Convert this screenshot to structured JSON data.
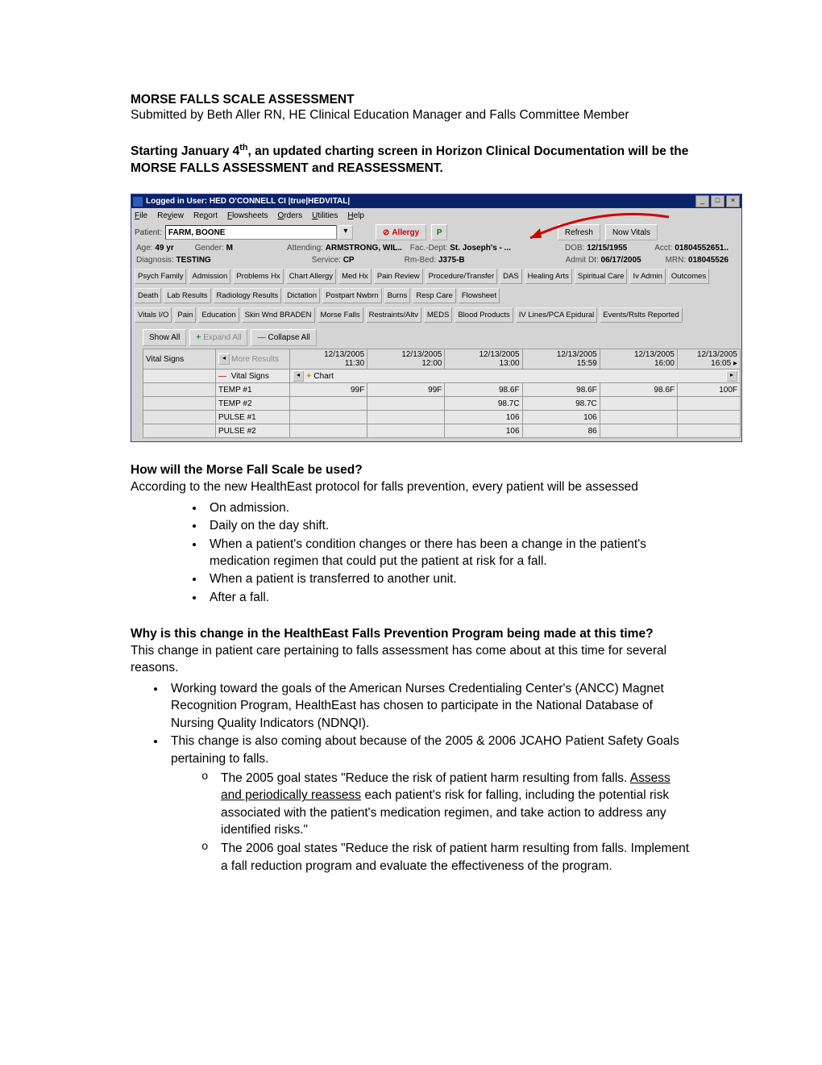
{
  "doc": {
    "title": "MORSE FALLS SCALE ASSESSMENT",
    "intro": "Submitted by Beth Aller RN, HE Clinical Education Manager and Falls Committee Member",
    "announce_a": "Starting January 4",
    "announce_sup": "th",
    "announce_b": ", an updated charting screen in Horizon Clinical Documentation will be  the MORSE FALLS ASSESSMENT and REASSESSMENT.",
    "q1": "How will the Morse Fall Scale be used?",
    "q1_body": "According to the new HealthEast protocol for falls prevention, every patient will be assessed",
    "q1_items": [
      "On admission.",
      "Daily on the day shift.",
      "When a patient's condition changes or there has been a change in the patient's medication regimen that could put the patient at risk for a fall.",
      "When a patient is transferred to another unit.",
      "After a fall."
    ],
    "q2": "Why is this change in the HealthEast Falls Prevention Program being made at this time?",
    "q2_body": "This change in patient care pertaining to falls assessment has come about at this time for several reasons.",
    "q2_item1": "Working toward the goals of the American Nurses Credentialing Center's (ANCC) Magnet Recognition Program, HealthEast has chosen to participate in the National Database of Nursing Quality Indicators (NDNQI).",
    "q2_item2": "This change is also coming about because of the 2005 & 2006 JCAHO Patient Safety Goals pertaining to falls.",
    "q2_sub1_a": "The 2005 goal states \"Reduce the risk of patient harm resulting from falls. ",
    "q2_sub1_u": "Assess and periodically reassess",
    "q2_sub1_b": " each patient's risk for falling, including the potential risk associated with the patient's medication regimen, and take action to address any identified risks.\"",
    "q2_sub2": "The 2006 goal states \"Reduce the risk of patient harm resulting from falls. Implement a fall reduction program and evaluate the effectiveness of the program."
  },
  "shot": {
    "titlebar": "Logged in User: HED O'CONNELL CI |true|HEDVITAL|",
    "menu": [
      "File",
      "Review",
      "Report",
      "Flowsheets",
      "Orders",
      "Utilities",
      "Help"
    ],
    "menu_u": [
      "F",
      "v",
      "p",
      "F",
      "O",
      "U",
      "H"
    ],
    "patient_lbl": "Patient:",
    "patient": "FARM, BOONE",
    "allergy": "Allergy",
    "P": "P",
    "refresh": "Refresh",
    "nowv": "Now Vitals",
    "age_l": "Age:",
    "age": "49 yr",
    "gender_l": "Gender:",
    "gender": "M",
    "att_l": "Attending:",
    "att": "ARMSTRONG, WIL..",
    "fac_l": "Fac.-Dept:",
    "fac": "St. Joseph's - ...",
    "dob_l": "DOB:",
    "dob": "12/15/1955",
    "acct_l": "Acct:",
    "acct": "01804552651..",
    "diag_l": "Diagnosis:",
    "diag": "TESTING",
    "svc_l": "Service:",
    "svc": "CP",
    "rm_l": "Rm-Bed:",
    "rm": "J375-B",
    "adm_l": "Admit Dt:",
    "adm": "06/17/2005",
    "mrn_l": "MRN:",
    "mrn": "018045526",
    "tabs_r1": [
      "Psych Family",
      "Admission",
      "Problems Hx",
      "Chart Allergy",
      "Med Hx",
      "Pain Review",
      "Procedure/Transfer",
      "DAS",
      "Healing Arts",
      "Spiritual Care",
      "Iv Admin",
      "Outcomes"
    ],
    "tabs_r2": [
      "Death",
      "Lab Results",
      "Radiology Results",
      "Dictation",
      "Postpart Nwbrn",
      "Burns",
      "Resp Care",
      "Flowsheet"
    ],
    "tabs_r3": [
      "Vitals I/O",
      "Pain",
      "Education",
      "Skin Wnd BRADEN",
      "Morse Falls",
      "Restraints/Altv",
      "MEDS",
      "Blood Products",
      "IV Lines/PCA Epidural",
      "Events/Rslts Reported"
    ],
    "showall": "Show All",
    "expand": "Expand All",
    "collapse": "Collapse All",
    "rowlbl": "Vital Signs",
    "moreres": "More Results",
    "times": [
      "12/13/2005",
      "12/13/2005",
      "12/13/2005",
      "12/13/2005",
      "12/13/2005",
      "12/13/2005"
    ],
    "hhmm": [
      "11:30",
      "12:00",
      "13:00",
      "15:59",
      "16:00",
      "16:05"
    ],
    "chartlbl": "Chart",
    "vslbl": "Vital Signs",
    "rows": [
      {
        "l": "TEMP #1",
        "v": [
          "99F",
          "99F",
          "98.6F",
          "98.6F",
          "98.6F",
          "100F"
        ]
      },
      {
        "l": "TEMP #2",
        "v": [
          "",
          "",
          "98.7C",
          "98.7C",
          "",
          ""
        ]
      },
      {
        "l": "PULSE #1",
        "v": [
          "",
          "",
          "106",
          "106",
          "",
          ""
        ]
      },
      {
        "l": "PULSE #2",
        "v": [
          "",
          "",
          "106",
          "86",
          "",
          ""
        ]
      }
    ]
  }
}
